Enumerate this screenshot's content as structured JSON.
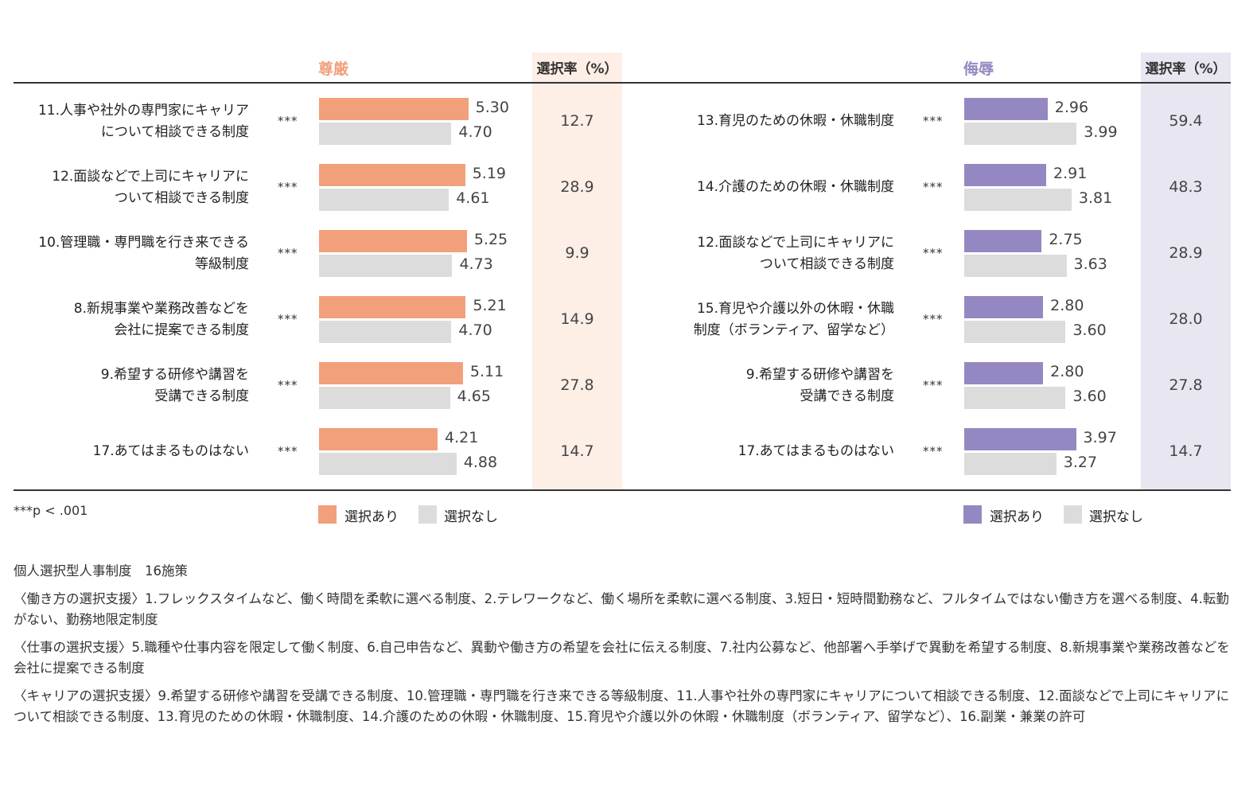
{
  "colors": {
    "left_accent": "#f2a07b",
    "left_rate_bg": "#fdeee6",
    "right_accent": "#9588c2",
    "right_rate_bg": "#e8e6f1",
    "no_select": "#dcdcdc"
  },
  "chart_data": [
    {
      "type": "bar",
      "orientation": "horizontal",
      "title": "尊厳",
      "rate_header": "選択率（%）",
      "categories": [
        [
          "11.人事や社外の専門家にキャリア",
          "について相談できる制度"
        ],
        [
          "12.面談などで上司にキャリアに",
          "ついて相談できる制度"
        ],
        [
          "10.管理職・専門職を行き来できる",
          "等級制度"
        ],
        [
          "8.新規事業や業務改善などを",
          "会社に提案できる制度"
        ],
        [
          "9.希望する研修や講習を",
          "受講できる制度"
        ],
        [
          "17.あてはまるものはない"
        ]
      ],
      "significance": [
        "***",
        "***",
        "***",
        "***",
        "***",
        "***"
      ],
      "series": [
        {
          "name": "選択あり",
          "values": [
            5.3,
            5.19,
            5.25,
            5.21,
            5.11,
            4.21
          ],
          "labels": [
            "5.30",
            "5.19",
            "5.25",
            "5.21",
            "5.11",
            "4.21"
          ]
        },
        {
          "name": "選択なし",
          "values": [
            4.7,
            4.61,
            4.73,
            4.7,
            4.65,
            4.88
          ],
          "labels": [
            "4.70",
            "4.61",
            "4.73",
            "4.70",
            "4.65",
            "4.88"
          ]
        }
      ],
      "selection_rates": [
        "12.7",
        "28.9",
        "9.9",
        "14.9",
        "27.8",
        "14.7"
      ]
    },
    {
      "type": "bar",
      "orientation": "horizontal",
      "title": "侮辱",
      "rate_header": "選択率（%）",
      "categories": [
        [
          "13.育児のための休暇・休職制度"
        ],
        [
          "14.介護のための休暇・休職制度"
        ],
        [
          "12.面談などで上司にキャリアに",
          "ついて相談できる制度"
        ],
        [
          "15.育児や介護以外の休暇・休職",
          "制度（ボランティア、留学など）"
        ],
        [
          "9.希望する研修や講習を",
          "受講できる制度"
        ],
        [
          "17.あてはまるものはない"
        ]
      ],
      "significance": [
        "***",
        "***",
        "***",
        "***",
        "***",
        "***"
      ],
      "series": [
        {
          "name": "選択あり",
          "values": [
            2.96,
            2.91,
            2.75,
            2.8,
            2.8,
            3.97
          ],
          "labels": [
            "2.96",
            "2.91",
            "2.75",
            "2.80",
            "2.80",
            "3.97"
          ]
        },
        {
          "name": "選択なし",
          "values": [
            3.99,
            3.81,
            3.63,
            3.6,
            3.6,
            3.27
          ],
          "labels": [
            "3.99",
            "3.81",
            "3.63",
            "3.60",
            "3.60",
            "3.27"
          ]
        }
      ],
      "selection_rates": [
        "59.4",
        "48.3",
        "28.9",
        "28.0",
        "27.8",
        "14.7"
      ]
    }
  ],
  "legend": {
    "selected": "選択あり",
    "not_selected": "選択なし"
  },
  "significance_note": "***p < .001",
  "footnotes": [
    "個人選択型人事制度　16施策",
    "〈働き方の選択支援〉1.フレックスタイムなど、働く時間を柔軟に選べる制度、2.テレワークなど、働く場所を柔軟に選べる制度、3.短日・短時間勤務など、フルタイムではない働き方を選べる制度、4.転勤がない、勤務地限定制度",
    "〈仕事の選択支援〉5.職種や仕事内容を限定して働く制度、6.自己申告など、異動や働き方の希望を会社に伝える制度、7.社内公募など、他部署へ手挙げで異動を希望する制度、8.新規事業や業務改善などを会社に提案できる制度",
    "〈キャリアの選択支援〉9.希望する研修や講習を受講できる制度、10.管理職・専門職を行き来できる等級制度、11.人事や社外の専門家にキャリアについて相談できる制度、12.面談などで上司にキャリアについて相談できる制度、13.育児のための休暇・休職制度、14.介護のための休暇・休職制度、15.育児や介護以外の休暇・休職制度（ボランティア、留学など）、16.副業・兼業の許可"
  ]
}
